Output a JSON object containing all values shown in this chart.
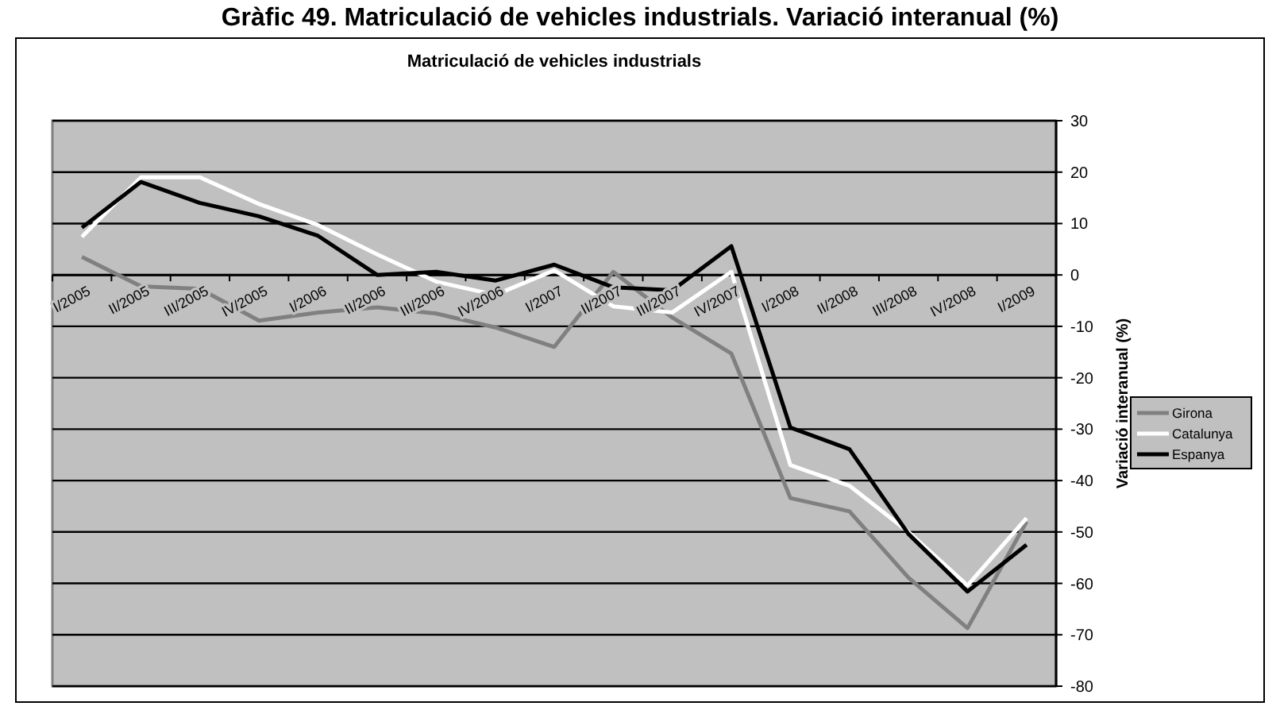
{
  "chart_data": {
    "type": "line",
    "title": "Matriculació de vehicles industrials",
    "ylabel": "Variació interanual (%)",
    "annotations": [
      "Gràfic 49. Matriculació de vehicles industrials. Variació interanual (%)"
    ],
    "categories": [
      "I/2005",
      "II/2005",
      "III/2005",
      "IV/2005",
      "I/2006",
      "II/2006",
      "III/2006",
      "IV/2006",
      "I/2007",
      "II/2007",
      "III/2007",
      "IV/2007",
      "I/2008",
      "II/2008",
      "III/2008",
      "IV/2008",
      "I/2009"
    ],
    "series": [
      {
        "name": "Girona",
        "color": "#808080",
        "values": [
          3.5,
          -2.2,
          -2.7,
          -8.9,
          -7.3,
          -6.3,
          -7.5,
          -10.2,
          -14,
          0.6,
          -8.3,
          -15.3,
          -43.4,
          -46,
          -58.9,
          -68.7,
          -48
        ]
      },
      {
        "name": "Catalunya",
        "color": "#ffffff",
        "values": [
          7.4,
          19,
          19,
          13.8,
          9.7,
          4,
          -1.3,
          -3.9,
          0.9,
          -6.1,
          -7.3,
          0.6,
          -37,
          -41,
          -50,
          -60.4,
          -47.3
        ]
      },
      {
        "name": "Espanya",
        "color": "#000000",
        "values": [
          9.2,
          18.1,
          14,
          11.4,
          7.6,
          0,
          0.6,
          -1.1,
          2,
          -2.4,
          -3,
          5.6,
          -29.7,
          -33.9,
          -50.4,
          -61.6,
          -52.5
        ]
      }
    ],
    "ylim": [
      -80,
      30
    ],
    "yticks": [
      -80,
      -70,
      -60,
      -50,
      -40,
      -30,
      -20,
      -10,
      0,
      10,
      20,
      30
    ],
    "grid": "y",
    "legend": "right",
    "marker": "none",
    "line_style": "solid"
  }
}
